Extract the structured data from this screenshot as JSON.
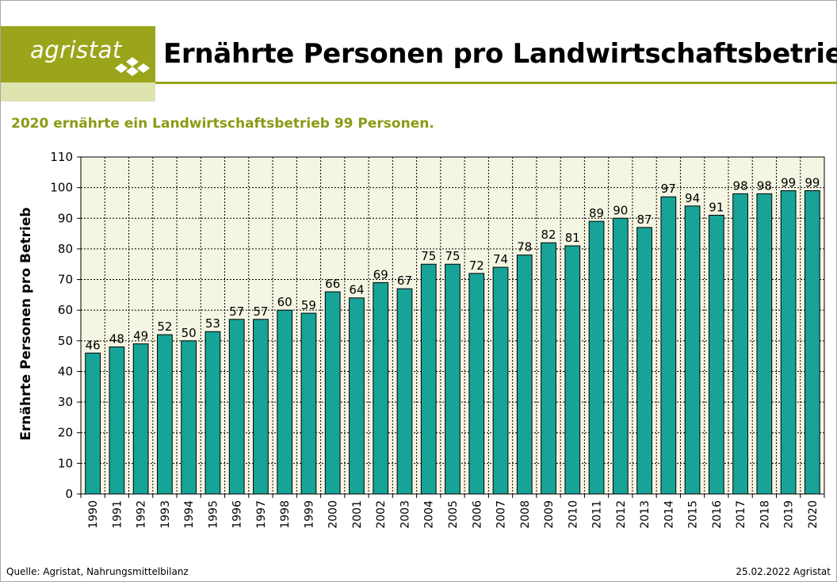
{
  "header": {
    "logo_text": "agristat",
    "title": "Ernährte Personen pro Landwirtschaftsbetrieb"
  },
  "subtitle": "2020 ernährte ein Landwirtschaftsbetrieb 99 Personen.",
  "footer": {
    "source": "Quelle: Agristat, Nahrungsmittelbilanz",
    "date": "25.02.2022 Agristat"
  },
  "colors": {
    "brand": "#9aa51b",
    "brand_light": "#dfe3b0",
    "bar": "#17a398",
    "plot_bg": "#f5f5e3",
    "subtitle": "#8a9a14"
  },
  "chart_data": {
    "type": "bar",
    "title": "Ernährte Personen pro Landwirtschaftsbetrieb",
    "xlabel": "",
    "ylabel": "Ernährte Personen pro Betrieb",
    "ylim": [
      0,
      110
    ],
    "yticks": [
      0,
      10,
      20,
      30,
      40,
      50,
      60,
      70,
      80,
      90,
      100,
      110
    ],
    "grid": true,
    "legend": "none",
    "categories": [
      "1990",
      "1991",
      "1992",
      "1993",
      "1994",
      "1995",
      "1996",
      "1997",
      "1998",
      "1999",
      "2000",
      "2001",
      "2002",
      "2003",
      "2004",
      "2005",
      "2006",
      "2007",
      "2008",
      "2009",
      "2010",
      "2011",
      "2012",
      "2013",
      "2014",
      "2015",
      "2016",
      "2017",
      "2018",
      "2019",
      "2020"
    ],
    "values": [
      46,
      48,
      49,
      52,
      50,
      53,
      57,
      57,
      60,
      59,
      66,
      64,
      69,
      67,
      75,
      75,
      72,
      74,
      78,
      82,
      81,
      89,
      90,
      87,
      97,
      94,
      91,
      98,
      98,
      99,
      99
    ]
  }
}
